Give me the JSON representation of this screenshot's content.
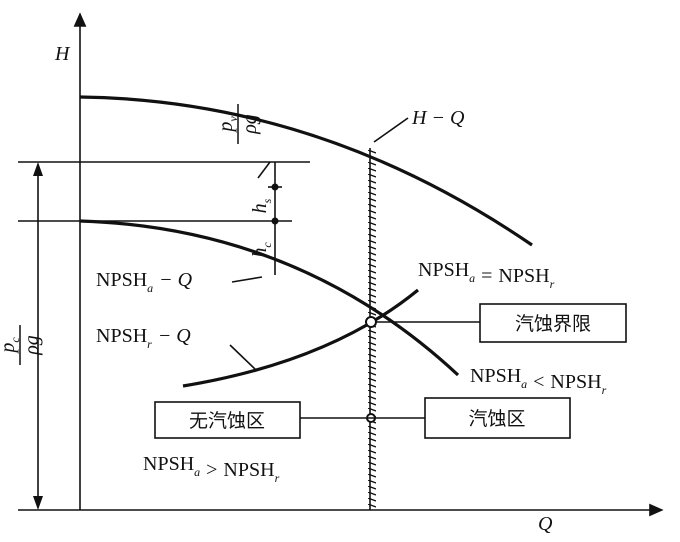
{
  "axes": {
    "y_label": "H",
    "x_label": "Q"
  },
  "curves": {
    "h_q": {
      "label": "H − Q"
    },
    "npsh_a_q": {
      "label": {
        "base": "NPSH",
        "sub": "a",
        "tail": "− Q"
      }
    },
    "npsh_r_q": {
      "label": {
        "base": "NPSH",
        "sub": "r",
        "tail": "− Q"
      }
    }
  },
  "dimensions": {
    "p_v": {
      "numerator": {
        "base": "p",
        "sub": "v"
      },
      "denominator": "ρg"
    },
    "h_s": {
      "base": "h",
      "sub": "s"
    },
    "h_c": {
      "base": "h",
      "sub": "c"
    },
    "p_c": {
      "numerator": {
        "base": "p",
        "sub": "c"
      },
      "denominator": "ρg"
    }
  },
  "conditions": {
    "equal": {
      "left": {
        "base": "NPSH",
        "sub": "a"
      },
      "op": "=",
      "right": {
        "base": "NPSH",
        "sub": "r"
      }
    },
    "less": {
      "left": {
        "base": "NPSH",
        "sub": "a"
      },
      "op": "<",
      "right": {
        "base": "NPSH",
        "sub": "r"
      }
    },
    "greater": {
      "left": {
        "base": "NPSH",
        "sub": "a"
      },
      "op": ">",
      "right": {
        "base": "NPSH",
        "sub": "r"
      }
    }
  },
  "regions": {
    "limit": "汽蚀界限",
    "no_cavitation": "无汽蚀区",
    "cavitation": "汽蚀区"
  }
}
